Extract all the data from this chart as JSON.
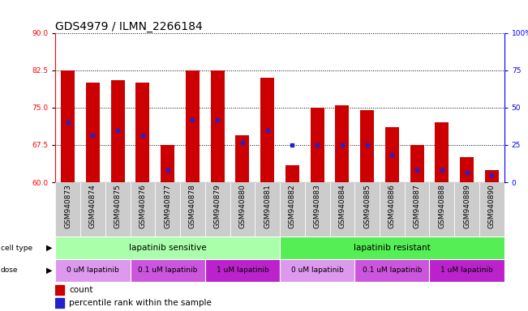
{
  "title": "GDS4979 / ILMN_2266184",
  "samples": [
    "GSM940873",
    "GSM940874",
    "GSM940875",
    "GSM940876",
    "GSM940877",
    "GSM940878",
    "GSM940879",
    "GSM940880",
    "GSM940881",
    "GSM940882",
    "GSM940883",
    "GSM940884",
    "GSM940885",
    "GSM940886",
    "GSM940887",
    "GSM940888",
    "GSM940889",
    "GSM940890"
  ],
  "bar_values": [
    82.5,
    80.0,
    80.5,
    80.0,
    67.5,
    82.5,
    82.5,
    69.5,
    81.0,
    63.5,
    75.0,
    75.5,
    74.5,
    71.0,
    67.5,
    72.0,
    65.0,
    62.5
  ],
  "blue_dot_values": [
    72.0,
    69.5,
    70.5,
    69.5,
    62.5,
    72.5,
    72.5,
    68.0,
    70.5,
    67.5,
    67.5,
    67.5,
    67.5,
    65.5,
    62.5,
    62.5,
    62.0,
    61.5
  ],
  "ylim_left": [
    60,
    90
  ],
  "yticks_left": [
    60,
    67.5,
    75,
    82.5,
    90
  ],
  "yticks_right": [
    0,
    25,
    50,
    75,
    100
  ],
  "bar_color": "#cc0000",
  "dot_color": "#2222cc",
  "cell_type_groups": [
    {
      "label": "lapatinib sensitive",
      "start": 0,
      "end": 9,
      "color": "#aaffaa"
    },
    {
      "label": "lapatinib resistant",
      "start": 9,
      "end": 18,
      "color": "#55ee55"
    }
  ],
  "dose_groups": [
    {
      "label": "0 uM lapatinib",
      "start": 0,
      "end": 3,
      "color": "#dd99ee"
    },
    {
      "label": "0.1 uM lapatinib",
      "start": 3,
      "end": 6,
      "color": "#cc55dd"
    },
    {
      "label": "1 uM lapatinib",
      "start": 6,
      "end": 9,
      "color": "#bb22cc"
    },
    {
      "label": "0 uM lapatinib",
      "start": 9,
      "end": 12,
      "color": "#dd99ee"
    },
    {
      "label": "0.1 uM lapatinib",
      "start": 12,
      "end": 15,
      "color": "#cc55dd"
    },
    {
      "label": "1 uM lapatinib",
      "start": 15,
      "end": 18,
      "color": "#bb22cc"
    }
  ],
  "cell_type_label": "cell type",
  "dose_label": "dose",
  "legend_count": "count",
  "legend_percentile": "percentile rank within the sample",
  "background_color": "#ffffff",
  "plot_bg_color": "#ffffff",
  "title_fontsize": 10,
  "tick_fontsize": 6.5,
  "bar_width": 0.55,
  "xtick_bg": "#cccccc"
}
